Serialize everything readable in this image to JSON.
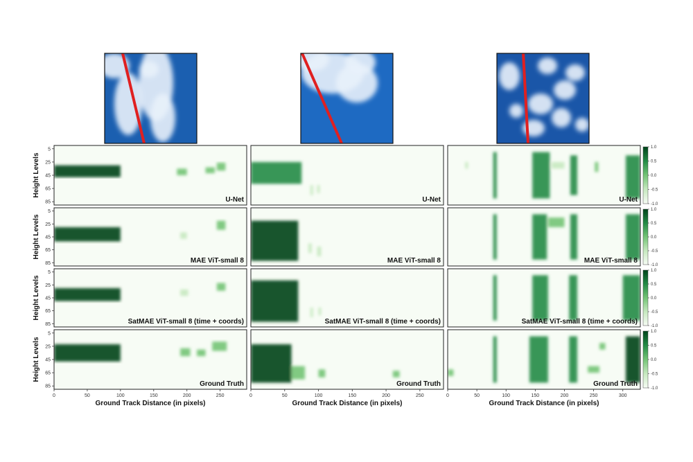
{
  "chart_data": {
    "type": "heatmap",
    "row_labels": [
      "U-Net",
      "MAE ViT-small 8",
      "SatMAE ViT-small 8 (time + coords)",
      "Ground Truth"
    ],
    "ylabel": "Height Levels",
    "xlabel": "Ground Track Distance (in pixels)",
    "y_ticks": [
      5,
      25,
      45,
      65,
      85
    ],
    "colorbar_ticks": [
      1.0,
      0.5,
      0.0,
      -0.5,
      -1.0
    ],
    "colorbar_ticks_display": [
      "1.0",
      "0.5",
      "0.0",
      "-0.5",
      "-1.0"
    ],
    "colormap": [
      "#f7fcf5",
      "#c7e9c0",
      "#74c476",
      "#238b45",
      "#00441b"
    ],
    "columns": [
      {
        "x_ticks": [
          0,
          50,
          100,
          150,
          200,
          250
        ],
        "xlim": [
          0,
          290
        ],
        "rows": [
          [
            {
              "x": [
                0,
                100
              ],
              "y": [
                30,
                48
              ],
              "v": 0.9
            },
            {
              "x": [
                185,
                200
              ],
              "y": [
                35,
                45
              ],
              "v": 0.4
            },
            {
              "x": [
                228,
                242
              ],
              "y": [
                33,
                42
              ],
              "v": 0.4
            },
            {
              "x": [
                245,
                258
              ],
              "y": [
                26,
                38
              ],
              "v": 0.6
            }
          ],
          [
            {
              "x": [
                0,
                100
              ],
              "y": [
                30,
                52
              ],
              "v": 0.9
            },
            {
              "x": [
                190,
                200
              ],
              "y": [
                38,
                48
              ],
              "v": 0.3
            },
            {
              "x": [
                245,
                258
              ],
              "y": [
                20,
                34
              ],
              "v": 0.6
            }
          ],
          [
            {
              "x": [
                0,
                100
              ],
              "y": [
                30,
                50
              ],
              "v": 0.9
            },
            {
              "x": [
                190,
                202
              ],
              "y": [
                32,
                42
              ],
              "v": 0.3
            },
            {
              "x": [
                245,
                258
              ],
              "y": [
                22,
                34
              ],
              "v": 0.6
            }
          ],
          [
            {
              "x": [
                0,
                100
              ],
              "y": [
                22,
                48
              ],
              "v": 0.9
            },
            {
              "x": [
                190,
                205
              ],
              "y": [
                28,
                40
              ],
              "v": 0.4
            },
            {
              "x": [
                215,
                228
              ],
              "y": [
                30,
                40
              ],
              "v": 0.4
            },
            {
              "x": [
                238,
                260
              ],
              "y": [
                18,
                32
              ],
              "v": 0.6
            }
          ]
        ]
      },
      {
        "x_ticks": [
          0,
          50,
          100,
          150,
          200,
          250
        ],
        "xlim": [
          0,
          285
        ],
        "rows": [
          [
            {
              "x": [
                0,
                75
              ],
              "y": [
                25,
                58
              ],
              "v": 0.8
            },
            {
              "x": [
                88,
                92
              ],
              "y": [
                60,
                75
              ],
              "v": 0.3
            },
            {
              "x": [
                98,
                102
              ],
              "y": [
                60,
                72
              ],
              "v": 0.3
            }
          ],
          [
            {
              "x": [
                0,
                70
              ],
              "y": [
                20,
                82
              ],
              "v": 0.9
            },
            {
              "x": [
                85,
                90
              ],
              "y": [
                55,
                70
              ],
              "v": 0.3
            },
            {
              "x": [
                98,
                104
              ],
              "y": [
                60,
                75
              ],
              "v": 0.3
            }
          ],
          [
            {
              "x": [
                0,
                70
              ],
              "y": [
                18,
                82
              ],
              "v": 0.9
            },
            {
              "x": [
                88,
                92
              ],
              "y": [
                60,
                75
              ],
              "v": 0.3
            },
            {
              "x": [
                100,
                104
              ],
              "y": [
                60,
                72
              ],
              "v": 0.3
            }
          ],
          [
            {
              "x": [
                0,
                60
              ],
              "y": [
                22,
                80
              ],
              "v": 0.9
            },
            {
              "x": [
                60,
                80
              ],
              "y": [
                55,
                75
              ],
              "v": 0.6
            },
            {
              "x": [
                100,
                110
              ],
              "y": [
                60,
                72
              ],
              "v": 0.4
            },
            {
              "x": [
                210,
                220
              ],
              "y": [
                62,
                72
              ],
              "v": 0.4
            }
          ]
        ]
      },
      {
        "x_ticks": [
          0,
          50,
          100,
          150,
          200,
          250,
          300
        ],
        "xlim": [
          0,
          330
        ],
        "rows": [
          [
            {
              "x": [
                78,
                84
              ],
              "y": [
                10,
                80
              ],
              "v": 0.8
            },
            {
              "x": [
                145,
                175
              ],
              "y": [
                10,
                80
              ],
              "v": 0.7
            },
            {
              "x": [
                210,
                222
              ],
              "y": [
                15,
                75
              ],
              "v": 0.7
            },
            {
              "x": [
                252,
                258
              ],
              "y": [
                25,
                40
              ],
              "v": 0.4
            },
            {
              "x": [
                305,
                330
              ],
              "y": [
                15,
                80
              ],
              "v": 0.8
            },
            {
              "x": [
                30,
                35
              ],
              "y": [
                25,
                35
              ],
              "v": 0.3
            },
            {
              "x": [
                178,
                200
              ],
              "y": [
                25,
                35
              ],
              "v": 0.3
            }
          ],
          [
            {
              "x": [
                78,
                84
              ],
              "y": [
                10,
                80
              ],
              "v": 0.8
            },
            {
              "x": [
                145,
                170
              ],
              "y": [
                10,
                80
              ],
              "v": 0.7
            },
            {
              "x": [
                210,
                222
              ],
              "y": [
                10,
                80
              ],
              "v": 0.8
            },
            {
              "x": [
                305,
                330
              ],
              "y": [
                10,
                80
              ],
              "v": 0.8
            },
            {
              "x": [
                172,
                200
              ],
              "y": [
                15,
                30
              ],
              "v": 0.4
            }
          ],
          [
            {
              "x": [
                78,
                84
              ],
              "y": [
                10,
                80
              ],
              "v": 0.8
            },
            {
              "x": [
                145,
                172
              ],
              "y": [
                10,
                80
              ],
              "v": 0.7
            },
            {
              "x": [
                208,
                222
              ],
              "y": [
                10,
                80
              ],
              "v": 0.8
            },
            {
              "x": [
                300,
                330
              ],
              "y": [
                10,
                80
              ],
              "v": 0.8
            }
          ],
          [
            {
              "x": [
                78,
                84
              ],
              "y": [
                10,
                80
              ],
              "v": 0.8
            },
            {
              "x": [
                140,
                172
              ],
              "y": [
                10,
                80
              ],
              "v": 0.8
            },
            {
              "x": [
                208,
                222
              ],
              "y": [
                10,
                80
              ],
              "v": 0.8
            },
            {
              "x": [
                305,
                330
              ],
              "y": [
                10,
                80
              ],
              "v": 0.9
            },
            {
              "x": [
                0,
                10
              ],
              "y": [
                60,
                70
              ],
              "v": 0.4
            },
            {
              "x": [
                240,
                260
              ],
              "y": [
                55,
                65
              ],
              "v": 0.4
            },
            {
              "x": [
                260,
                270
              ],
              "y": [
                20,
                30
              ],
              "v": 0.4
            }
          ]
        ]
      }
    ]
  },
  "satellite_images": [
    {
      "name": "satellite-image-1",
      "track_color": "#e02020"
    },
    {
      "name": "satellite-image-2",
      "track_color": "#e02020"
    },
    {
      "name": "satellite-image-3",
      "track_color": "#e02020"
    }
  ]
}
